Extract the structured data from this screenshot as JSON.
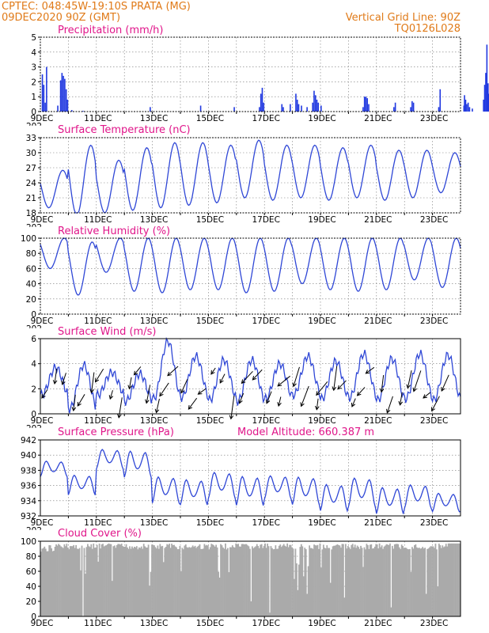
{
  "header": {
    "left_line1": "CPTEC:  048:45W-19:10S   PRATA (MG)",
    "left_line2": "09DEC2020 90Z (GMT)",
    "right_line1": "Vertical Grid Line: 90Z",
    "right_line2": "TQ0126L028"
  },
  "x_axis": {
    "tick_labels": [
      "9DEC",
      "11DEC",
      "13DEC",
      "15DEC",
      "17DEC",
      "19DEC",
      "21DEC",
      "23DEC"
    ],
    "clipped_label": "202",
    "days": 15
  },
  "colors": {
    "line": "#2f47d6",
    "bars": "#2038e0",
    "cloud": "#aaaaaa",
    "header": "#e07a18",
    "title": "#e0168a"
  },
  "chart_data": [
    {
      "type": "bar",
      "title": "Precipitation (mm/h)",
      "ylim": [
        0,
        5
      ],
      "yticks": [
        0,
        1,
        2,
        3,
        4,
        5
      ],
      "bars": [
        [
          0.05,
          2.5
        ],
        [
          0.1,
          1.8
        ],
        [
          0.15,
          0.6
        ],
        [
          0.2,
          3.0
        ],
        [
          0.6,
          0.4
        ],
        [
          0.7,
          2.1
        ],
        [
          0.75,
          2.6
        ],
        [
          0.8,
          2.4
        ],
        [
          0.85,
          2.2
        ],
        [
          0.9,
          1.5
        ],
        [
          0.95,
          0.8
        ],
        [
          1.1,
          0.1
        ],
        [
          1.5,
          0.05
        ],
        [
          3.9,
          0.3
        ],
        [
          5.7,
          0.4
        ],
        [
          6.9,
          0.3
        ],
        [
          7.8,
          0.3
        ],
        [
          7.85,
          1.2
        ],
        [
          7.9,
          1.6
        ],
        [
          7.95,
          0.6
        ],
        [
          8.6,
          0.5
        ],
        [
          8.65,
          0.3
        ],
        [
          8.9,
          0.5
        ],
        [
          9.1,
          1.2
        ],
        [
          9.15,
          0.8
        ],
        [
          9.2,
          0.5
        ],
        [
          9.3,
          0.4
        ],
        [
          9.5,
          0.3
        ],
        [
          9.7,
          0.6
        ],
        [
          9.75,
          1.4
        ],
        [
          9.8,
          1.1
        ],
        [
          9.85,
          0.8
        ],
        [
          9.9,
          0.6
        ],
        [
          10.0,
          0.4
        ],
        [
          11.5,
          0.3
        ],
        [
          11.55,
          1.0
        ],
        [
          11.6,
          1.0
        ],
        [
          11.65,
          0.9
        ],
        [
          11.7,
          0.5
        ],
        [
          12.6,
          0.3
        ],
        [
          12.65,
          0.6
        ],
        [
          13.2,
          0.3
        ],
        [
          13.25,
          0.7
        ],
        [
          13.3,
          0.6
        ],
        [
          14.2,
          0.3
        ],
        [
          14.25,
          1.5
        ],
        [
          15.1,
          0.4
        ],
        [
          15.12,
          1.1
        ],
        [
          15.16,
          0.8
        ],
        [
          15.2,
          0.5
        ],
        [
          15.25,
          0.6
        ],
        [
          15.3,
          0.3
        ],
        [
          15.4,
          0.2
        ],
        [
          15.8,
          0.8
        ],
        [
          15.84,
          1.8
        ],
        [
          15.88,
          2.6
        ],
        [
          15.92,
          4.5
        ],
        [
          15.96,
          1.9
        ],
        [
          16.0,
          1.2
        ],
        [
          16.04,
          3.7
        ],
        [
          16.08,
          4.1
        ],
        [
          16.12,
          2.2
        ],
        [
          16.16,
          1.6
        ],
        [
          16.2,
          0.9
        ],
        [
          16.24,
          1.4
        ],
        [
          16.5,
          0.3
        ],
        [
          16.55,
          1.2
        ],
        [
          16.6,
          0.4
        ],
        [
          16.7,
          1.2
        ],
        [
          16.75,
          2.1
        ],
        [
          16.8,
          0.5
        ],
        [
          16.85,
          0.4
        ]
      ]
    },
    {
      "type": "line",
      "title": "Surface Temperature (nC)",
      "ylim": [
        18,
        33
      ],
      "yticks": [
        18,
        21,
        24,
        27,
        30,
        33
      ],
      "daily_min": [
        19,
        17.5,
        18,
        18.5,
        19,
        19.5,
        20,
        21,
        20.5,
        21,
        20.5,
        21,
        20.5,
        21,
        22
      ],
      "daily_max": [
        26.5,
        31.5,
        28.5,
        31,
        32,
        32,
        31.5,
        32.5,
        31.5,
        31.5,
        31,
        31.5,
        30.5,
        30.5,
        30
      ]
    },
    {
      "type": "line",
      "title": "Relative Humidity (%)",
      "ylim": [
        0,
        100
      ],
      "yticks": [
        0,
        20,
        40,
        60,
        80,
        100
      ],
      "daily_min": [
        60,
        25,
        55,
        30,
        28,
        32,
        32,
        28,
        30,
        40,
        32,
        30,
        32,
        45,
        35
      ],
      "daily_max": [
        100,
        95,
        100,
        100,
        100,
        100,
        100,
        100,
        100,
        100,
        100,
        100,
        100,
        100,
        100
      ]
    },
    {
      "type": "line",
      "title": "Surface Wind (m/s)",
      "ylim": [
        0,
        6
      ],
      "yticks": [
        0,
        2,
        4,
        6
      ],
      "daily_min": [
        1.5,
        0.4,
        1.5,
        1.0,
        1.2,
        1.3,
        1.1,
        1.0,
        1.2,
        1.5,
        1.2,
        1.3,
        1.1,
        1.2,
        1.1
      ],
      "daily_max": [
        3.7,
        3.9,
        3.3,
        3.2,
        5.8,
        4.6,
        4.3,
        4.3,
        4.0,
        4.6,
        4.2,
        4.8,
        4.4,
        4.8,
        4.7
      ]
    },
    {
      "type": "line",
      "title": "Surface Pressure (hPa)",
      "annotation": "Model Altitude: 660.387 m",
      "ylim": [
        932,
        942
      ],
      "yticks": [
        932,
        934,
        936,
        938,
        940,
        942
      ],
      "daily_mean": [
        938.3,
        936.2,
        939.6,
        939.0,
        935.6,
        935.3,
        936.2,
        935.5,
        935.9,
        935.5,
        934.6,
        935.3,
        934.2,
        934.7,
        933.9
      ],
      "daily_amp": [
        1.2,
        1.5,
        1.5,
        2.0,
        2.0,
        1.9,
        2.0,
        2.2,
        1.8,
        2.1,
        2.0,
        2.2,
        2.0,
        1.8,
        1.4
      ]
    },
    {
      "type": "area",
      "title": "Cloud Cover (%)",
      "ylim": [
        0,
        100
      ],
      "yticks": [
        0,
        20,
        40,
        60,
        80,
        100
      ],
      "baseline": 97
    }
  ]
}
